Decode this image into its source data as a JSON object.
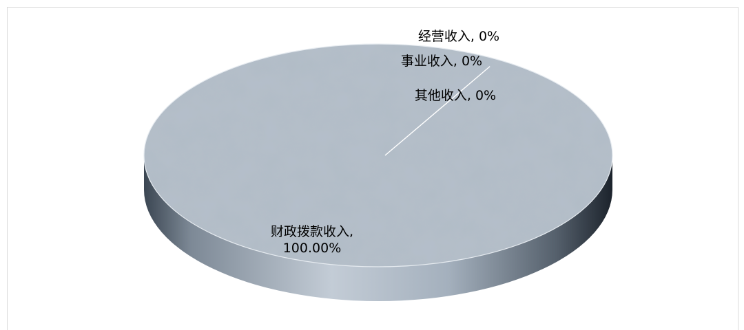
{
  "chart_data": {
    "type": "pie",
    "style": "3d",
    "title": "",
    "categories": [
      "财政拨款收入",
      "其他收入",
      "事业收入",
      "经营收入"
    ],
    "values": [
      100.0,
      0,
      0,
      0
    ],
    "data_labels": [
      {
        "category": "财政拨款收入",
        "text_lines": [
          "财政拨款收入,",
          "100.00%"
        ]
      },
      {
        "category": "其他收入",
        "text_lines": [
          "其他收入, 0%"
        ]
      },
      {
        "category": "事业收入",
        "text_lines": [
          "事业收入, 0%"
        ]
      },
      {
        "category": "经营收入",
        "text_lines": [
          "经营收入, 0%"
        ]
      }
    ],
    "colors": {
      "top_surface": "#b5c0cb",
      "side_light": "#c3ccd6",
      "side_dark": "#1c232c",
      "separator_line": "#ffffff",
      "frame_border": "#d9d9d9"
    },
    "legend": "none"
  }
}
